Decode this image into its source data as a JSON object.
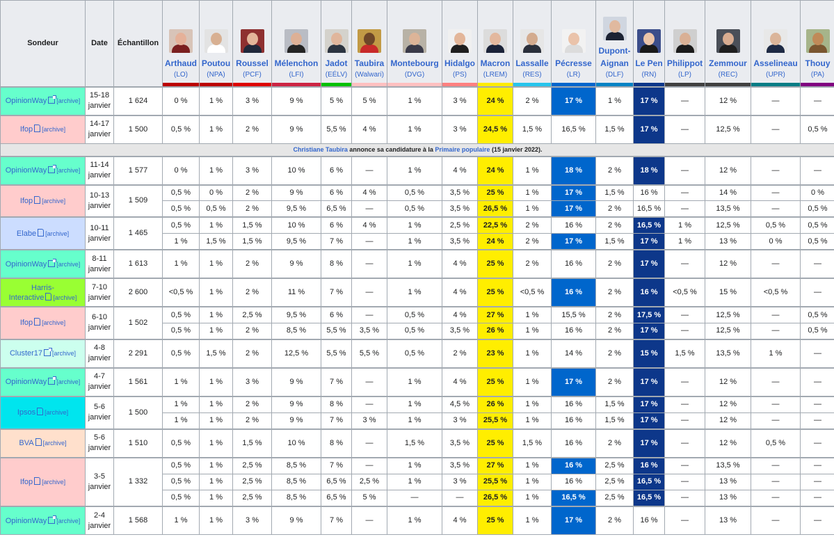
{
  "header": {
    "sondeur": "Sondeur",
    "date": "Date",
    "echantillon": "Échantillon",
    "candidates": [
      {
        "name": "Arthaud",
        "party": "(LO)",
        "color": "#bb0000",
        "photo_bg": "#d8c4b8",
        "skin": "#e5b199",
        "cloth": "#7a1f1f"
      },
      {
        "name": "Poutou",
        "party": "(NPA)",
        "color": "#bb0000",
        "photo_bg": "#e3e3e3",
        "skin": "#d8b092",
        "cloth": "#ffffff"
      },
      {
        "name": "Roussel",
        "party": "(PCF)",
        "color": "#dd0000",
        "photo_bg": "#8e3030",
        "skin": "#e3b59a",
        "cloth": "#20283a"
      },
      {
        "name": "Mélenchon",
        "party": "(LFI)",
        "color": "#cc2443",
        "photo_bg": "#b9bcc4",
        "skin": "#ddb096",
        "cloth": "#242424"
      },
      {
        "name": "Jadot",
        "party": "(EÉLV)",
        "color": "#00c000",
        "photo_bg": "#d4d2cc",
        "skin": "#e0b69c",
        "cloth": "#2c3440"
      },
      {
        "name": "Taubira",
        "party": "(Walwari)",
        "color": "#ffc0c0",
        "photo_bg": "#c29a45",
        "skin": "#6e4628",
        "cloth": "#c82a2a"
      },
      {
        "name": "Montebourg",
        "party": "(DVG)",
        "color": "#ffc0c0",
        "photo_bg": "#b8b2a6",
        "skin": "#dcb498",
        "cloth": "#3a3a48"
      },
      {
        "name": "Hidalgo",
        "party": "(PS)",
        "color": "#ff8080",
        "photo_bg": "#f0f0f0",
        "skin": "#e3b699",
        "cloth": "#1f1f1f"
      },
      {
        "name": "Macron",
        "party": "(LREM)",
        "color": "#ffeb00",
        "photo_bg": "#dcdcdc",
        "skin": "#e3b89e",
        "cloth": "#1a2238"
      },
      {
        "name": "Lassalle",
        "party": "(RES)",
        "color": "#26c4ec",
        "photo_bg": "#e6e6e6",
        "skin": "#d3ab8e",
        "cloth": "#2a2f3a"
      },
      {
        "name": "Pécresse",
        "party": "(LR)",
        "color": "#0066cc",
        "photo_bg": "#f2f2f2",
        "skin": "#eac3aa",
        "cloth": "#dcdcdc"
      },
      {
        "name": "Dupont-Aignan",
        "party": "(DLF)",
        "color": "#0082c4",
        "photo_bg": "#d0d6e0",
        "skin": "#e0b99f",
        "cloth": "#1c2233"
      },
      {
        "name": "Le Pen",
        "party": "(RN)",
        "color": "#0d378a",
        "photo_bg": "#3b4d8a",
        "skin": "#ebc4a8",
        "cloth": "#1a1a1a"
      },
      {
        "name": "Philippot",
        "party": "(LP)",
        "color": "#404040",
        "photo_bg": "#cfcfcf",
        "skin": "#d9b095",
        "cloth": "#1a1a1a"
      },
      {
        "name": "Zemmour",
        "party": "(REC)",
        "color": "#404040",
        "photo_bg": "#4a4f58",
        "skin": "#d8ac90",
        "cloth": "#1f1f1f"
      },
      {
        "name": "Asselineau",
        "party": "(UPR)",
        "color": "#057c85",
        "photo_bg": "#e8e8e8",
        "skin": "#dbb59a",
        "cloth": "#1e2a44"
      },
      {
        "name": "Thouy",
        "party": "(PA)",
        "color": "#800080",
        "photo_bg": "#a6b48a",
        "skin": "#c08a58",
        "cloth": "#7a5630"
      }
    ]
  },
  "archive_label": "[archive]",
  "event": {
    "name": "Christiane Taubira",
    "text": " annonce sa candidature à la ",
    "link": "Primaire populaire",
    "tail": " (15 janvier 2022)."
  },
  "polls": [
    {
      "sondeur": "OpinionWay",
      "sondeur_lines": [
        "OpinionWay"
      ],
      "icon": "ext",
      "bg": "#66ffcc",
      "date": [
        "15-18",
        "janvier"
      ],
      "echantillon": "1 624",
      "rows": [
        [
          "0 %",
          "1 %",
          "3 %",
          "9 %",
          "5 %",
          "5 %",
          "1 %",
          "3 %",
          "24 %",
          "2 %",
          "17 %",
          "1 %",
          "17 %",
          "—",
          "12 %",
          "—",
          "—"
        ]
      ],
      "hl": [
        [
          8,
          "y"
        ],
        [
          10,
          "b"
        ],
        [
          12,
          "n"
        ]
      ]
    },
    {
      "sondeur": "Ifop",
      "sondeur_lines": [
        "Ifop"
      ],
      "icon": "doc",
      "bg": "#ffcccc",
      "date": [
        "14-17",
        "janvier"
      ],
      "echantillon": "1 500",
      "rows": [
        [
          "0,5 %",
          "1 %",
          "2 %",
          "9 %",
          "5,5 %",
          "4 %",
          "1 %",
          "3 %",
          "24,5 %",
          "1,5 %",
          "16,5 %",
          "1,5 %",
          "17 %",
          "—",
          "12,5 %",
          "—",
          "0,5 %"
        ]
      ],
      "hl": [
        [
          8,
          "y"
        ],
        [
          12,
          "n"
        ]
      ]
    },
    {
      "event": true
    },
    {
      "sondeur": "OpinionWay",
      "sondeur_lines": [
        "OpinionWay"
      ],
      "icon": "ext",
      "bg": "#66ffcc",
      "date": [
        "11-14",
        "janvier"
      ],
      "echantillon": "1 577",
      "rows": [
        [
          "0 %",
          "1 %",
          "3 %",
          "10 %",
          "6 %",
          "—",
          "1 %",
          "4 %",
          "24 %",
          "1 %",
          "18 %",
          "2 %",
          "18 %",
          "—",
          "12 %",
          "—",
          "—"
        ]
      ],
      "hl": [
        [
          8,
          "y"
        ],
        [
          10,
          "b"
        ],
        [
          12,
          "n"
        ]
      ]
    },
    {
      "sondeur": "Ifop",
      "sondeur_lines": [
        "Ifop"
      ],
      "icon": "doc",
      "bg": "#ffcccc",
      "date": [
        "10-13",
        "janvier"
      ],
      "echantillon": "1 509",
      "rows": [
        [
          "0,5 %",
          "0 %",
          "2 %",
          "9 %",
          "6 %",
          "4 %",
          "0,5 %",
          "3,5 %",
          "25 %",
          "1 %",
          "17 %",
          "1,5 %",
          "16 %",
          "—",
          "14 %",
          "—",
          "0 %"
        ],
        [
          "0,5 %",
          "0,5 %",
          "2 %",
          "9,5 %",
          "6,5 %",
          "—",
          "0,5 %",
          "3,5 %",
          "26,5 %",
          "1 %",
          "17 %",
          "2 %",
          "16,5 %",
          "—",
          "13,5 %",
          "—",
          "0,5 %"
        ]
      ],
      "hl": [
        [
          8,
          "y"
        ],
        [
          10,
          "b"
        ]
      ]
    },
    {
      "sondeur": "Elabe",
      "sondeur_lines": [
        "Elabe"
      ],
      "icon": "doc",
      "bg": "#ccddff",
      "date": [
        "10-11",
        "janvier"
      ],
      "echantillon": "1 465",
      "rows": [
        [
          "0,5 %",
          "1 %",
          "1,5 %",
          "10 %",
          "6 %",
          "4 %",
          "1 %",
          "2,5 %",
          "22,5 %",
          "2 %",
          "16 %",
          "2 %",
          "16,5 %",
          "1 %",
          "12,5 %",
          "0,5 %",
          "0,5 %"
        ],
        [
          "1 %",
          "1,5 %",
          "1,5 %",
          "9,5 %",
          "7 %",
          "—",
          "1 %",
          "3,5 %",
          "24 %",
          "2 %",
          "17 %",
          "1,5 %",
          "17 %",
          "1 %",
          "13 %",
          "0 %",
          "0,5 %"
        ]
      ],
      "hl_rows": [
        [
          [
            8,
            "y"
          ],
          [
            12,
            "n"
          ]
        ],
        [
          [
            8,
            "y"
          ],
          [
            10,
            "b"
          ],
          [
            12,
            "n"
          ]
        ]
      ]
    },
    {
      "sondeur": "OpinionWay",
      "sondeur_lines": [
        "OpinionWay"
      ],
      "icon": "ext",
      "bg": "#66ffcc",
      "date": [
        "8-11",
        "janvier"
      ],
      "echantillon": "1 613",
      "rows": [
        [
          "1 %",
          "1 %",
          "2 %",
          "9 %",
          "8 %",
          "—",
          "1 %",
          "4 %",
          "25 %",
          "2 %",
          "16 %",
          "2 %",
          "17 %",
          "—",
          "12 %",
          "—",
          "—"
        ]
      ],
      "hl": [
        [
          8,
          "y"
        ],
        [
          12,
          "n"
        ]
      ]
    },
    {
      "sondeur": "Harris-Interactive",
      "sondeur_lines": [
        "Harris-",
        "Interactive"
      ],
      "icon": "doc",
      "bg": "#99ff33",
      "date": [
        "7-10",
        "janvier"
      ],
      "echantillon": "2 600",
      "rows": [
        [
          "<0,5 %",
          "1 %",
          "2 %",
          "11 %",
          "7 %",
          "—",
          "1 %",
          "4 %",
          "25 %",
          "<0,5 %",
          "16 %",
          "2 %",
          "16 %",
          "<0,5 %",
          "15 %",
          "<0,5 %",
          "—"
        ]
      ],
      "hl": [
        [
          8,
          "y"
        ],
        [
          10,
          "b"
        ],
        [
          12,
          "n"
        ]
      ]
    },
    {
      "sondeur": "Ifop",
      "sondeur_lines": [
        "Ifop"
      ],
      "icon": "doc",
      "bg": "#ffcccc",
      "date": [
        "6-10",
        "janvier"
      ],
      "echantillon": "1 502",
      "rows": [
        [
          "0,5 %",
          "1 %",
          "2,5 %",
          "9,5 %",
          "6 %",
          "—",
          "0,5 %",
          "4 %",
          "27 %",
          "1 %",
          "15,5 %",
          "2 %",
          "17,5 %",
          "—",
          "12,5 %",
          "—",
          "0,5 %"
        ],
        [
          "0,5 %",
          "1 %",
          "2 %",
          "8,5 %",
          "5,5 %",
          "3,5 %",
          "0,5 %",
          "3,5 %",
          "26 %",
          "1 %",
          "16 %",
          "2 %",
          "17 %",
          "—",
          "12,5 %",
          "—",
          "0,5 %"
        ]
      ],
      "hl": [
        [
          8,
          "y"
        ],
        [
          12,
          "n"
        ]
      ]
    },
    {
      "sondeur": "Cluster17",
      "sondeur_lines": [
        "Cluster17"
      ],
      "icon": "ext",
      "bg": "#ccffee",
      "date": [
        "4-8",
        "janvier"
      ],
      "echantillon": "2 291",
      "rows": [
        [
          "0,5 %",
          "1,5 %",
          "2 %",
          "12,5 %",
          "5,5 %",
          "5,5 %",
          "0,5 %",
          "2 %",
          "23 %",
          "1 %",
          "14 %",
          "2 %",
          "15 %",
          "1,5 %",
          "13,5 %",
          "1 %",
          "—"
        ]
      ],
      "hl": [
        [
          8,
          "y"
        ],
        [
          12,
          "n"
        ]
      ]
    },
    {
      "sondeur": "OpinionWay",
      "sondeur_lines": [
        "OpinionWay"
      ],
      "icon": "ext",
      "bg": "#66ffcc",
      "date": [
        "4-7",
        "janvier"
      ],
      "echantillon": "1 561",
      "rows": [
        [
          "1 %",
          "1 %",
          "3 %",
          "9 %",
          "7 %",
          "—",
          "1 %",
          "4 %",
          "25 %",
          "1 %",
          "17 %",
          "2 %",
          "17 %",
          "—",
          "12 %",
          "—",
          "—"
        ]
      ],
      "hl": [
        [
          8,
          "y"
        ],
        [
          10,
          "b"
        ],
        [
          12,
          "n"
        ]
      ]
    },
    {
      "sondeur": "Ipsos",
      "sondeur_lines": [
        "Ipsos"
      ],
      "icon": "doc",
      "bg": "#00e5ee",
      "date": [
        "5-6",
        "janvier"
      ],
      "echantillon": "1 500",
      "rows": [
        [
          "1 %",
          "1 %",
          "2 %",
          "9 %",
          "8 %",
          "—",
          "1 %",
          "4,5 %",
          "26 %",
          "1 %",
          "16 %",
          "1,5 %",
          "17 %",
          "—",
          "12 %",
          "—",
          "—"
        ],
        [
          "1 %",
          "1 %",
          "2 %",
          "9 %",
          "7 %",
          "3 %",
          "1 %",
          "3 %",
          "25,5 %",
          "1 %",
          "16 %",
          "1,5 %",
          "17 %",
          "—",
          "12 %",
          "—",
          "—"
        ]
      ],
      "hl": [
        [
          8,
          "y"
        ],
        [
          12,
          "n"
        ]
      ]
    },
    {
      "sondeur": "BVA",
      "sondeur_lines": [
        "BVA"
      ],
      "icon": "doc",
      "bg": "#ffe0cc",
      "date": [
        "5-6",
        "janvier"
      ],
      "echantillon": "1 510",
      "rows": [
        [
          "0,5 %",
          "1 %",
          "1,5 %",
          "10 %",
          "8 %",
          "—",
          "1,5 %",
          "3,5 %",
          "25 %",
          "1,5 %",
          "16 %",
          "2 %",
          "17 %",
          "—",
          "12 %",
          "0,5 %",
          "—"
        ]
      ],
      "hl": [
        [
          8,
          "y"
        ],
        [
          12,
          "n"
        ]
      ]
    },
    {
      "sondeur": "Ifop",
      "sondeur_lines": [
        "Ifop"
      ],
      "icon": "doc",
      "bg": "#ffcccc",
      "date": [
        "3-5",
        "janvier"
      ],
      "echantillon": "1 332",
      "rows": [
        [
          "0,5 %",
          "1 %",
          "2,5 %",
          "8,5 %",
          "7 %",
          "—",
          "1 %",
          "3,5 %",
          "27 %",
          "1 %",
          "16 %",
          "2,5 %",
          "16 %",
          "—",
          "13,5 %",
          "—",
          "—"
        ],
        [
          "0,5 %",
          "1 %",
          "2,5 %",
          "8,5 %",
          "6,5 %",
          "2,5 %",
          "1 %",
          "3 %",
          "25,5 %",
          "1 %",
          "16 %",
          "2,5 %",
          "16,5 %",
          "—",
          "13 %",
          "—",
          "—"
        ],
        [
          "0,5 %",
          "1 %",
          "2,5 %",
          "8,5 %",
          "6,5 %",
          "5 %",
          "—",
          "—",
          "26,5 %",
          "1 %",
          "16,5 %",
          "2,5 %",
          "16,5 %",
          "—",
          "13 %",
          "—",
          "—"
        ]
      ],
      "hl_rows": [
        [
          [
            8,
            "y"
          ],
          [
            10,
            "b"
          ],
          [
            12,
            "n"
          ]
        ],
        [
          [
            8,
            "y"
          ],
          [
            12,
            "n"
          ]
        ],
        [
          [
            8,
            "y"
          ],
          [
            10,
            "b"
          ],
          [
            12,
            "n"
          ]
        ]
      ]
    },
    {
      "sondeur": "OpinionWay",
      "sondeur_lines": [
        "OpinionWay"
      ],
      "icon": "ext",
      "bg": "#66ffcc",
      "date": [
        "2-4",
        "janvier"
      ],
      "echantillon": "1 568",
      "rows": [
        [
          "1 %",
          "1 %",
          "3 %",
          "9 %",
          "7 %",
          "—",
          "1 %",
          "4 %",
          "25 %",
          "1 %",
          "17 %",
          "2 %",
          "16 %",
          "—",
          "13 %",
          "—",
          "—"
        ]
      ],
      "hl": [
        [
          8,
          "y"
        ],
        [
          10,
          "b"
        ]
      ]
    }
  ]
}
